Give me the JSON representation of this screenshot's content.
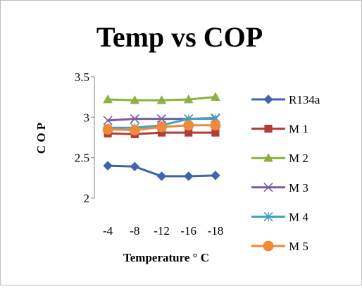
{
  "chart_data": {
    "type": "line",
    "title": "Temp vs COP",
    "xlabel": "Temperature ° C",
    "ylabel": "C O P",
    "categories": [
      "-4",
      "-8",
      "-12",
      "-16",
      "-18"
    ],
    "ylim": [
      2,
      3.5
    ],
    "yticks": [
      "3.5",
      "3",
      "2.5",
      "2"
    ],
    "grid": false,
    "legend_position": "right",
    "series": [
      {
        "name": "R134a",
        "color": "#3F64A8",
        "marker": "diamond",
        "values": [
          2.4,
          2.39,
          2.27,
          2.27,
          2.28
        ]
      },
      {
        "name": "M 1",
        "color": "#B33B38",
        "marker": "square",
        "values": [
          2.8,
          2.79,
          2.81,
          2.81,
          2.81
        ]
      },
      {
        "name": "M 2",
        "color": "#8CB140",
        "marker": "triangle",
        "values": [
          3.22,
          3.21,
          3.21,
          3.22,
          3.25
        ]
      },
      {
        "name": "M 3",
        "color": "#7C5C9E",
        "marker": "x",
        "values": [
          2.96,
          2.98,
          2.98,
          2.98,
          2.99
        ]
      },
      {
        "name": "M 4",
        "color": "#3FA3BE",
        "marker": "asterisk",
        "values": [
          2.87,
          2.87,
          2.9,
          2.98,
          2.98
        ]
      },
      {
        "name": "M 5",
        "color": "#EE8A3A",
        "marker": "circle",
        "values": [
          2.85,
          2.84,
          2.88,
          2.9,
          2.9
        ]
      }
    ]
  }
}
